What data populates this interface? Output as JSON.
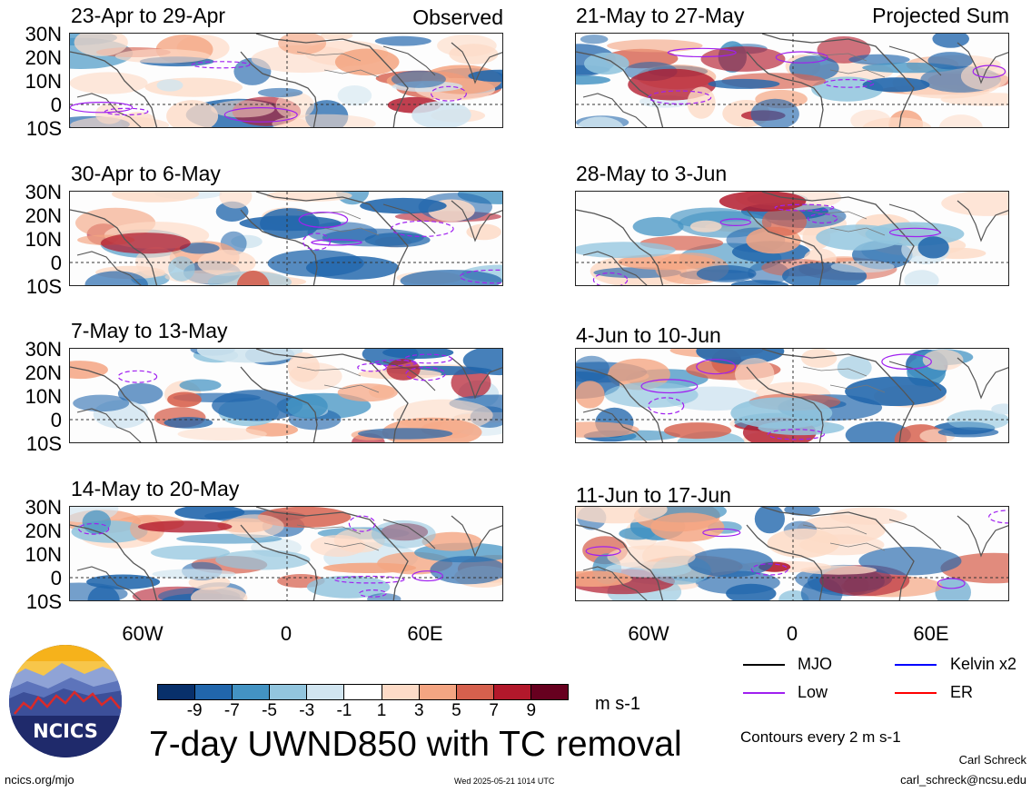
{
  "panels_observed": [
    {
      "title": "23-Apr to 29-Apr",
      "corner": "Observed"
    },
    {
      "title": "30-Apr to 6-May",
      "corner": ""
    },
    {
      "title": "7-May to 13-May",
      "corner": ""
    },
    {
      "title": "14-May to 20-May",
      "corner": ""
    }
  ],
  "panels_projected": [
    {
      "title": "21-May to 27-May",
      "corner": "Projected Sum"
    },
    {
      "title": "28-May to 3-Jun",
      "corner": ""
    },
    {
      "title": "4-Jun to 10-Jun",
      "corner": ""
    },
    {
      "title": "11-Jun to 17-Jun",
      "corner": ""
    }
  ],
  "lat_labels": [
    "30N",
    "20N",
    "10N",
    "0",
    "10S"
  ],
  "lon_labels": [
    "60W",
    "0",
    "60E"
  ],
  "colorbar": {
    "ticks": [
      "-9",
      "-7",
      "-5",
      "-3",
      "-1",
      "1",
      "3",
      "5",
      "7",
      "9"
    ],
    "colors": [
      "#08306b",
      "#2166ac",
      "#4393c3",
      "#92c5de",
      "#d1e5f0",
      "#ffffff",
      "#fddbc7",
      "#f4a582",
      "#d6604d",
      "#b2182b",
      "#67001f"
    ],
    "units": "m s-1"
  },
  "legend": {
    "items": [
      {
        "label": "MJO",
        "color": "#000000"
      },
      {
        "label": "Kelvin x2",
        "color": "#0000ff"
      },
      {
        "label": "Low",
        "color": "#a020f0"
      },
      {
        "label": "ER",
        "color": "#ff0000"
      }
    ],
    "note": "Contours every 2 m s-1"
  },
  "main_title": "7-day UWND850 with TC removal",
  "logo_text": "NCICS",
  "footer": {
    "url": "ncics.org/mjo",
    "timestamp": "Wed 2025-05-21 1014 UTC",
    "author": "Carl Schreck",
    "email": "carl_schreck@ncsu.edu"
  }
}
